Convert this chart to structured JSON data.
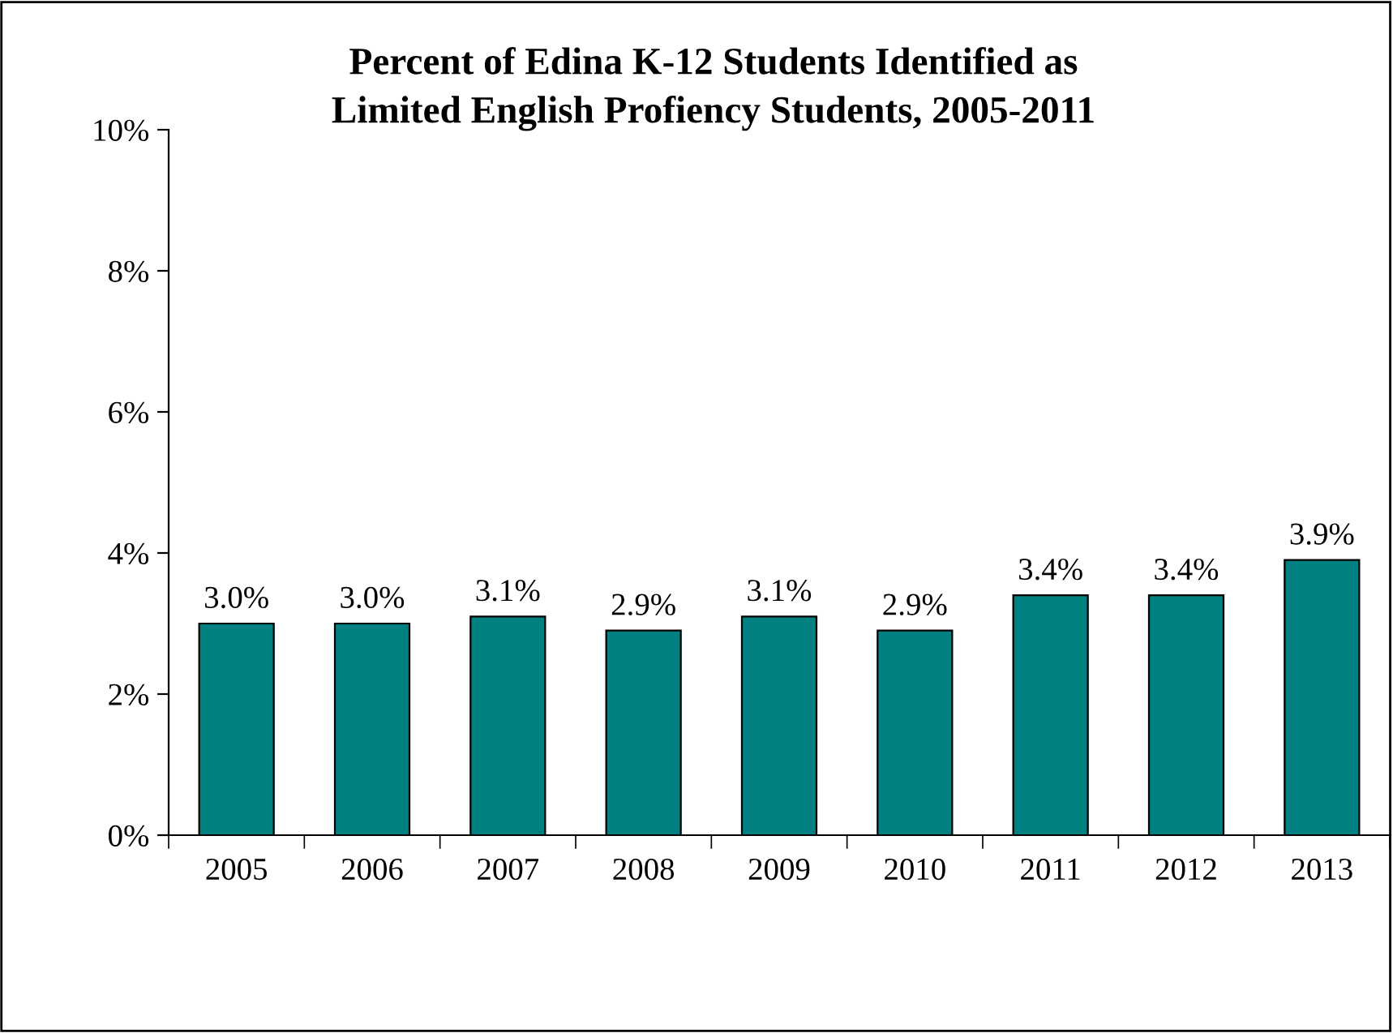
{
  "chart_data": {
    "type": "bar",
    "title": "Percent of Edina K-12 Students Identified as\nLimited English Profiency Students, 2005-2011",
    "categories": [
      "2005",
      "2006",
      "2007",
      "2008",
      "2009",
      "2010",
      "2011",
      "2012",
      "2013"
    ],
    "values": [
      3.0,
      3.0,
      3.1,
      2.9,
      3.1,
      2.9,
      3.4,
      3.4,
      3.9
    ],
    "value_labels": [
      "3.0%",
      "3.0%",
      "3.1%",
      "2.9%",
      "3.1%",
      "2.9%",
      "3.4%",
      "3.4%",
      "3.9%"
    ],
    "color": "#008080",
    "ylim": [
      0,
      10
    ],
    "yticks": [
      {
        "value": 0,
        "label": "0%"
      },
      {
        "value": 2,
        "label": "2%"
      },
      {
        "value": 4,
        "label": "4%"
      },
      {
        "value": 6,
        "label": "6%"
      },
      {
        "value": 8,
        "label": "8%"
      },
      {
        "value": 10,
        "label": "10%"
      }
    ],
    "grid": false
  }
}
